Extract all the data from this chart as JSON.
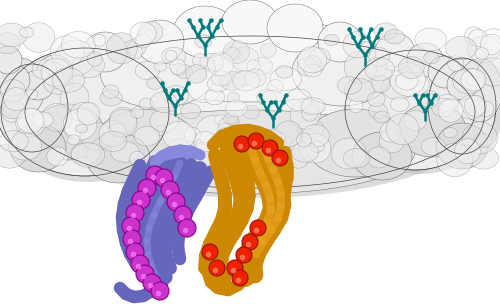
{
  "background_color": "#ffffff",
  "figure_width": 5.0,
  "figure_height": 3.04,
  "dpi": 100,
  "VH_color": "#CC8800",
  "VH_color2": "#E8A020",
  "VL_color": "#6666BB",
  "VL_color2": "#8888DD",
  "VH_sub_color": "#EE2200",
  "VL_sub_color": "#CC33CC",
  "glycan_color": "#007A7A",
  "surface_base": "#e8e8e8",
  "surface_dark": "#aaaaaa",
  "surface_edge": "#555555"
}
